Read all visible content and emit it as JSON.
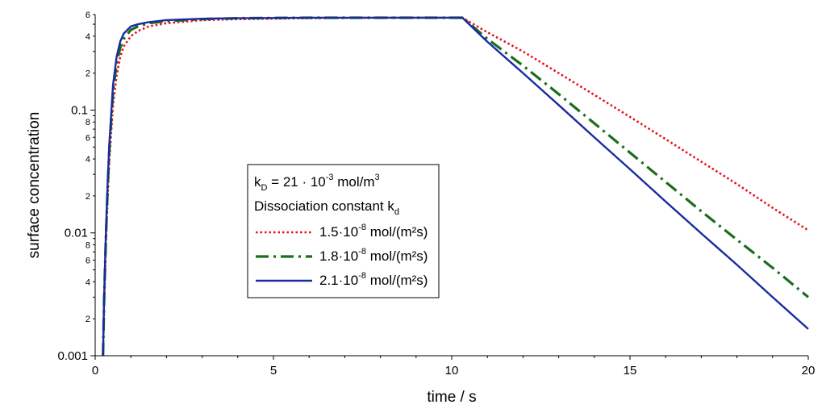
{
  "chart_data": {
    "type": "line",
    "xlabel": "time / s",
    "ylabel": "surface concentration",
    "xlim": [
      0,
      20
    ],
    "ylim": [
      0.001,
      0.6
    ],
    "yscale": "log",
    "grid": false,
    "x_ticks": [
      0,
      5,
      10,
      15,
      20
    ],
    "x_tick_labels": [
      "0",
      "5",
      "10",
      "15",
      "20"
    ],
    "y_major_ticks": [
      0.001,
      0.01,
      0.1
    ],
    "y_major_labels": [
      "0.001",
      "0.01",
      "0.1"
    ],
    "y_minor_ticks": [
      {
        "value": 0.002,
        "label": "2"
      },
      {
        "value": 0.004,
        "label": "4"
      },
      {
        "value": 0.006,
        "label": "6"
      },
      {
        "value": 0.008,
        "label": "8"
      },
      {
        "value": 0.02,
        "label": "2"
      },
      {
        "value": 0.04,
        "label": "4"
      },
      {
        "value": 0.06,
        "label": "6"
      },
      {
        "value": 0.08,
        "label": "8"
      },
      {
        "value": 0.2,
        "label": "2"
      },
      {
        "value": 0.4,
        "label": "4"
      },
      {
        "value": 0.6,
        "label": "6"
      }
    ],
    "legend": {
      "placement": "center",
      "title_line1": {
        "main": "k",
        "sub": "D",
        "rest": " = 21 · 10",
        "sup": "-3",
        "unit": "  mol/m",
        "unit_sup": "3"
      },
      "title_line2": {
        "main": "Dissociation constant k",
        "sub": "d"
      },
      "entries": [
        {
          "prefix": "1.5·10",
          "sup": "-8",
          "suffix": " mol/(m²s)"
        },
        {
          "prefix": "1.8·10",
          "sup": "-8",
          "suffix": " mol/(m²s)"
        },
        {
          "prefix": "2.1·10",
          "sup": "-8",
          "suffix": " mol/(m²s)"
        }
      ]
    },
    "series": [
      {
        "name": "1.5·10-8 mol/(m²s)",
        "color": "#e8101a",
        "style": "dotted",
        "x": [
          0.22,
          0.25,
          0.3,
          0.35,
          0.4,
          0.5,
          0.6,
          0.7,
          0.8,
          1.0,
          1.2,
          1.5,
          2.0,
          3.0,
          4.0,
          6.0,
          8.0,
          10.3,
          11.0,
          12.0,
          13.0,
          14.0,
          15.0,
          16.0,
          17.0,
          18.0,
          19.0,
          20.0
        ],
        "y": [
          0.001,
          0.0025,
          0.008,
          0.02,
          0.04,
          0.11,
          0.19,
          0.27,
          0.33,
          0.4,
          0.44,
          0.48,
          0.51,
          0.54,
          0.55,
          0.56,
          0.565,
          0.565,
          0.43,
          0.3,
          0.2,
          0.133,
          0.088,
          0.058,
          0.038,
          0.025,
          0.016,
          0.0105
        ]
      },
      {
        "name": "1.8·10-8 mol/(m²s)",
        "color": "#1a6e1a",
        "style": "dashdot",
        "x": [
          0.22,
          0.25,
          0.3,
          0.35,
          0.4,
          0.5,
          0.6,
          0.7,
          0.8,
          1.0,
          1.2,
          1.5,
          2.0,
          3.0,
          4.0,
          6.0,
          8.0,
          10.3,
          11.0,
          12.0,
          13.0,
          14.0,
          15.0,
          16.0,
          17.0,
          18.0,
          19.0,
          20.0
        ],
        "y": [
          0.001,
          0.0028,
          0.009,
          0.023,
          0.05,
          0.14,
          0.24,
          0.32,
          0.38,
          0.45,
          0.48,
          0.51,
          0.53,
          0.55,
          0.56,
          0.565,
          0.565,
          0.565,
          0.38,
          0.23,
          0.135,
          0.078,
          0.045,
          0.026,
          0.015,
          0.0088,
          0.0052,
          0.003
        ]
      },
      {
        "name": "2.1·10-8 mol/(m²s)",
        "color": "#1a2aa0",
        "style": "solid",
        "x": [
          0.22,
          0.25,
          0.3,
          0.35,
          0.4,
          0.5,
          0.6,
          0.7,
          0.8,
          1.0,
          1.2,
          1.5,
          2.0,
          3.0,
          4.0,
          6.0,
          8.0,
          10.3,
          11.0,
          12.0,
          13.0,
          14.0,
          15.0,
          16.0,
          17.0,
          18.0,
          19.0,
          20.0
        ],
        "y": [
          0.001,
          0.003,
          0.01,
          0.026,
          0.055,
          0.16,
          0.27,
          0.36,
          0.42,
          0.48,
          0.5,
          0.52,
          0.54,
          0.555,
          0.56,
          0.565,
          0.565,
          0.565,
          0.36,
          0.2,
          0.11,
          0.06,
          0.033,
          0.018,
          0.0099,
          0.0055,
          0.003,
          0.00165
        ]
      }
    ]
  }
}
